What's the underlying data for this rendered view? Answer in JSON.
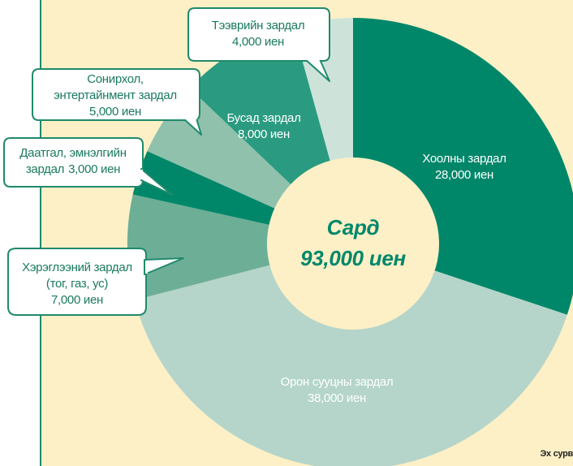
{
  "chart_data": {
    "type": "donut",
    "center_title": "Сард",
    "center_value": "93,000 иен",
    "categories": [
      [
        "Хоолны зардал"
      ],
      [
        "Орон сууцны зардал"
      ],
      [
        "Хэрэглээний зардал",
        "(тог, газ, ус)"
      ],
      [
        "Даатгал, эмнэлгийн",
        "зардал"
      ],
      [
        "Сонирхол,",
        "энтертайнмент зардал"
      ],
      [
        "Бусад зардал"
      ],
      [
        "Тээврийн зардал"
      ]
    ],
    "values": [
      28000,
      38000,
      7000,
      3000,
      5000,
      8000,
      4000
    ],
    "value_labels": [
      "28,000 иен",
      "38,000 иен",
      "7,000 иен",
      "3,000 иен",
      "5,000 иен",
      "8,000 иен",
      "4,000 иен"
    ],
    "colors": [
      "#00876a",
      "#b5d5ca",
      "#6dae97",
      "#00876a",
      "#8fc1ad",
      "#2a9b80",
      "#cde3da"
    ],
    "source": "Эх сурв"
  }
}
